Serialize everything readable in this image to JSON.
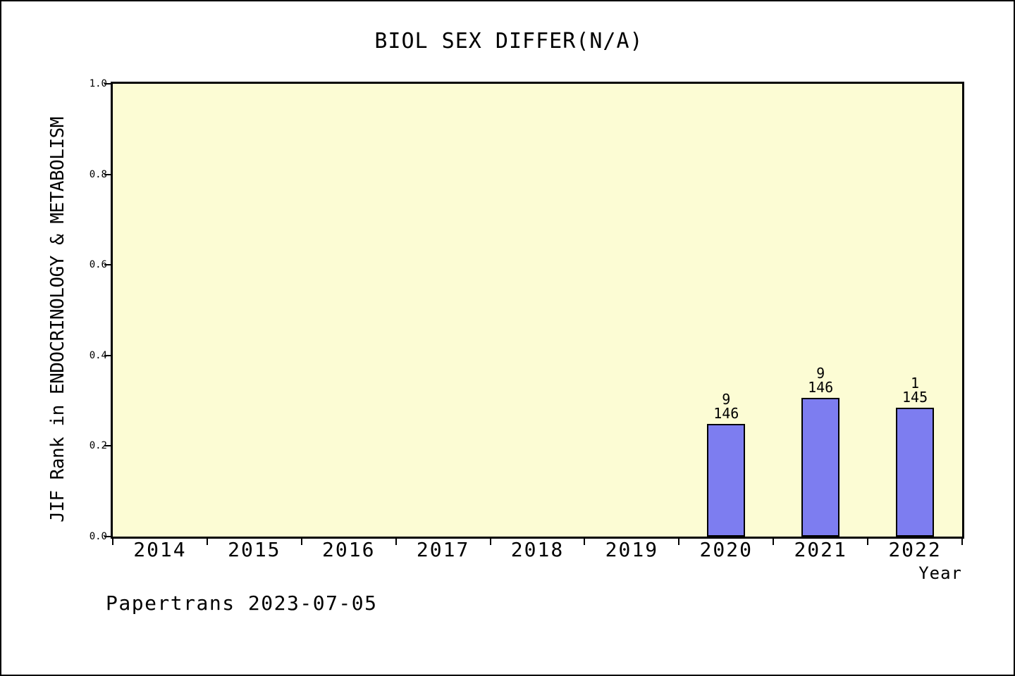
{
  "title": "BIOL SEX DIFFER(N/A)",
  "footer": "Papertrans 2023-07-05",
  "chart_data": {
    "type": "bar",
    "title": "BIOL SEX DIFFER(N/A)",
    "xlabel": "Year",
    "ylabel": "JIF Rank in ENDOCRINOLOGY & METABOLISM",
    "categories": [
      "2014",
      "2015",
      "2016",
      "2017",
      "2018",
      "2019",
      "2020",
      "2021",
      "2022"
    ],
    "values": [
      null,
      null,
      null,
      null,
      null,
      null,
      0.249,
      0.306,
      0.285
    ],
    "bar_labels": [
      null,
      null,
      null,
      null,
      null,
      null,
      {
        "numerator": "9",
        "denominator": "146"
      },
      {
        "numerator": "9",
        "denominator": "146"
      },
      {
        "numerator": "1",
        "denominator": "145"
      }
    ],
    "yticks": [
      "0.0",
      "0.2",
      "0.4",
      "0.6",
      "0.8",
      "1.0"
    ],
    "ylim": [
      0,
      1
    ],
    "grid": false,
    "legend": null,
    "colors": {
      "bar_fill": "#7d7df0",
      "bar_edge": "#000000",
      "plot_bg": "#fcfcd4",
      "page_bg": "#ffffff",
      "text": "#000000"
    }
  }
}
